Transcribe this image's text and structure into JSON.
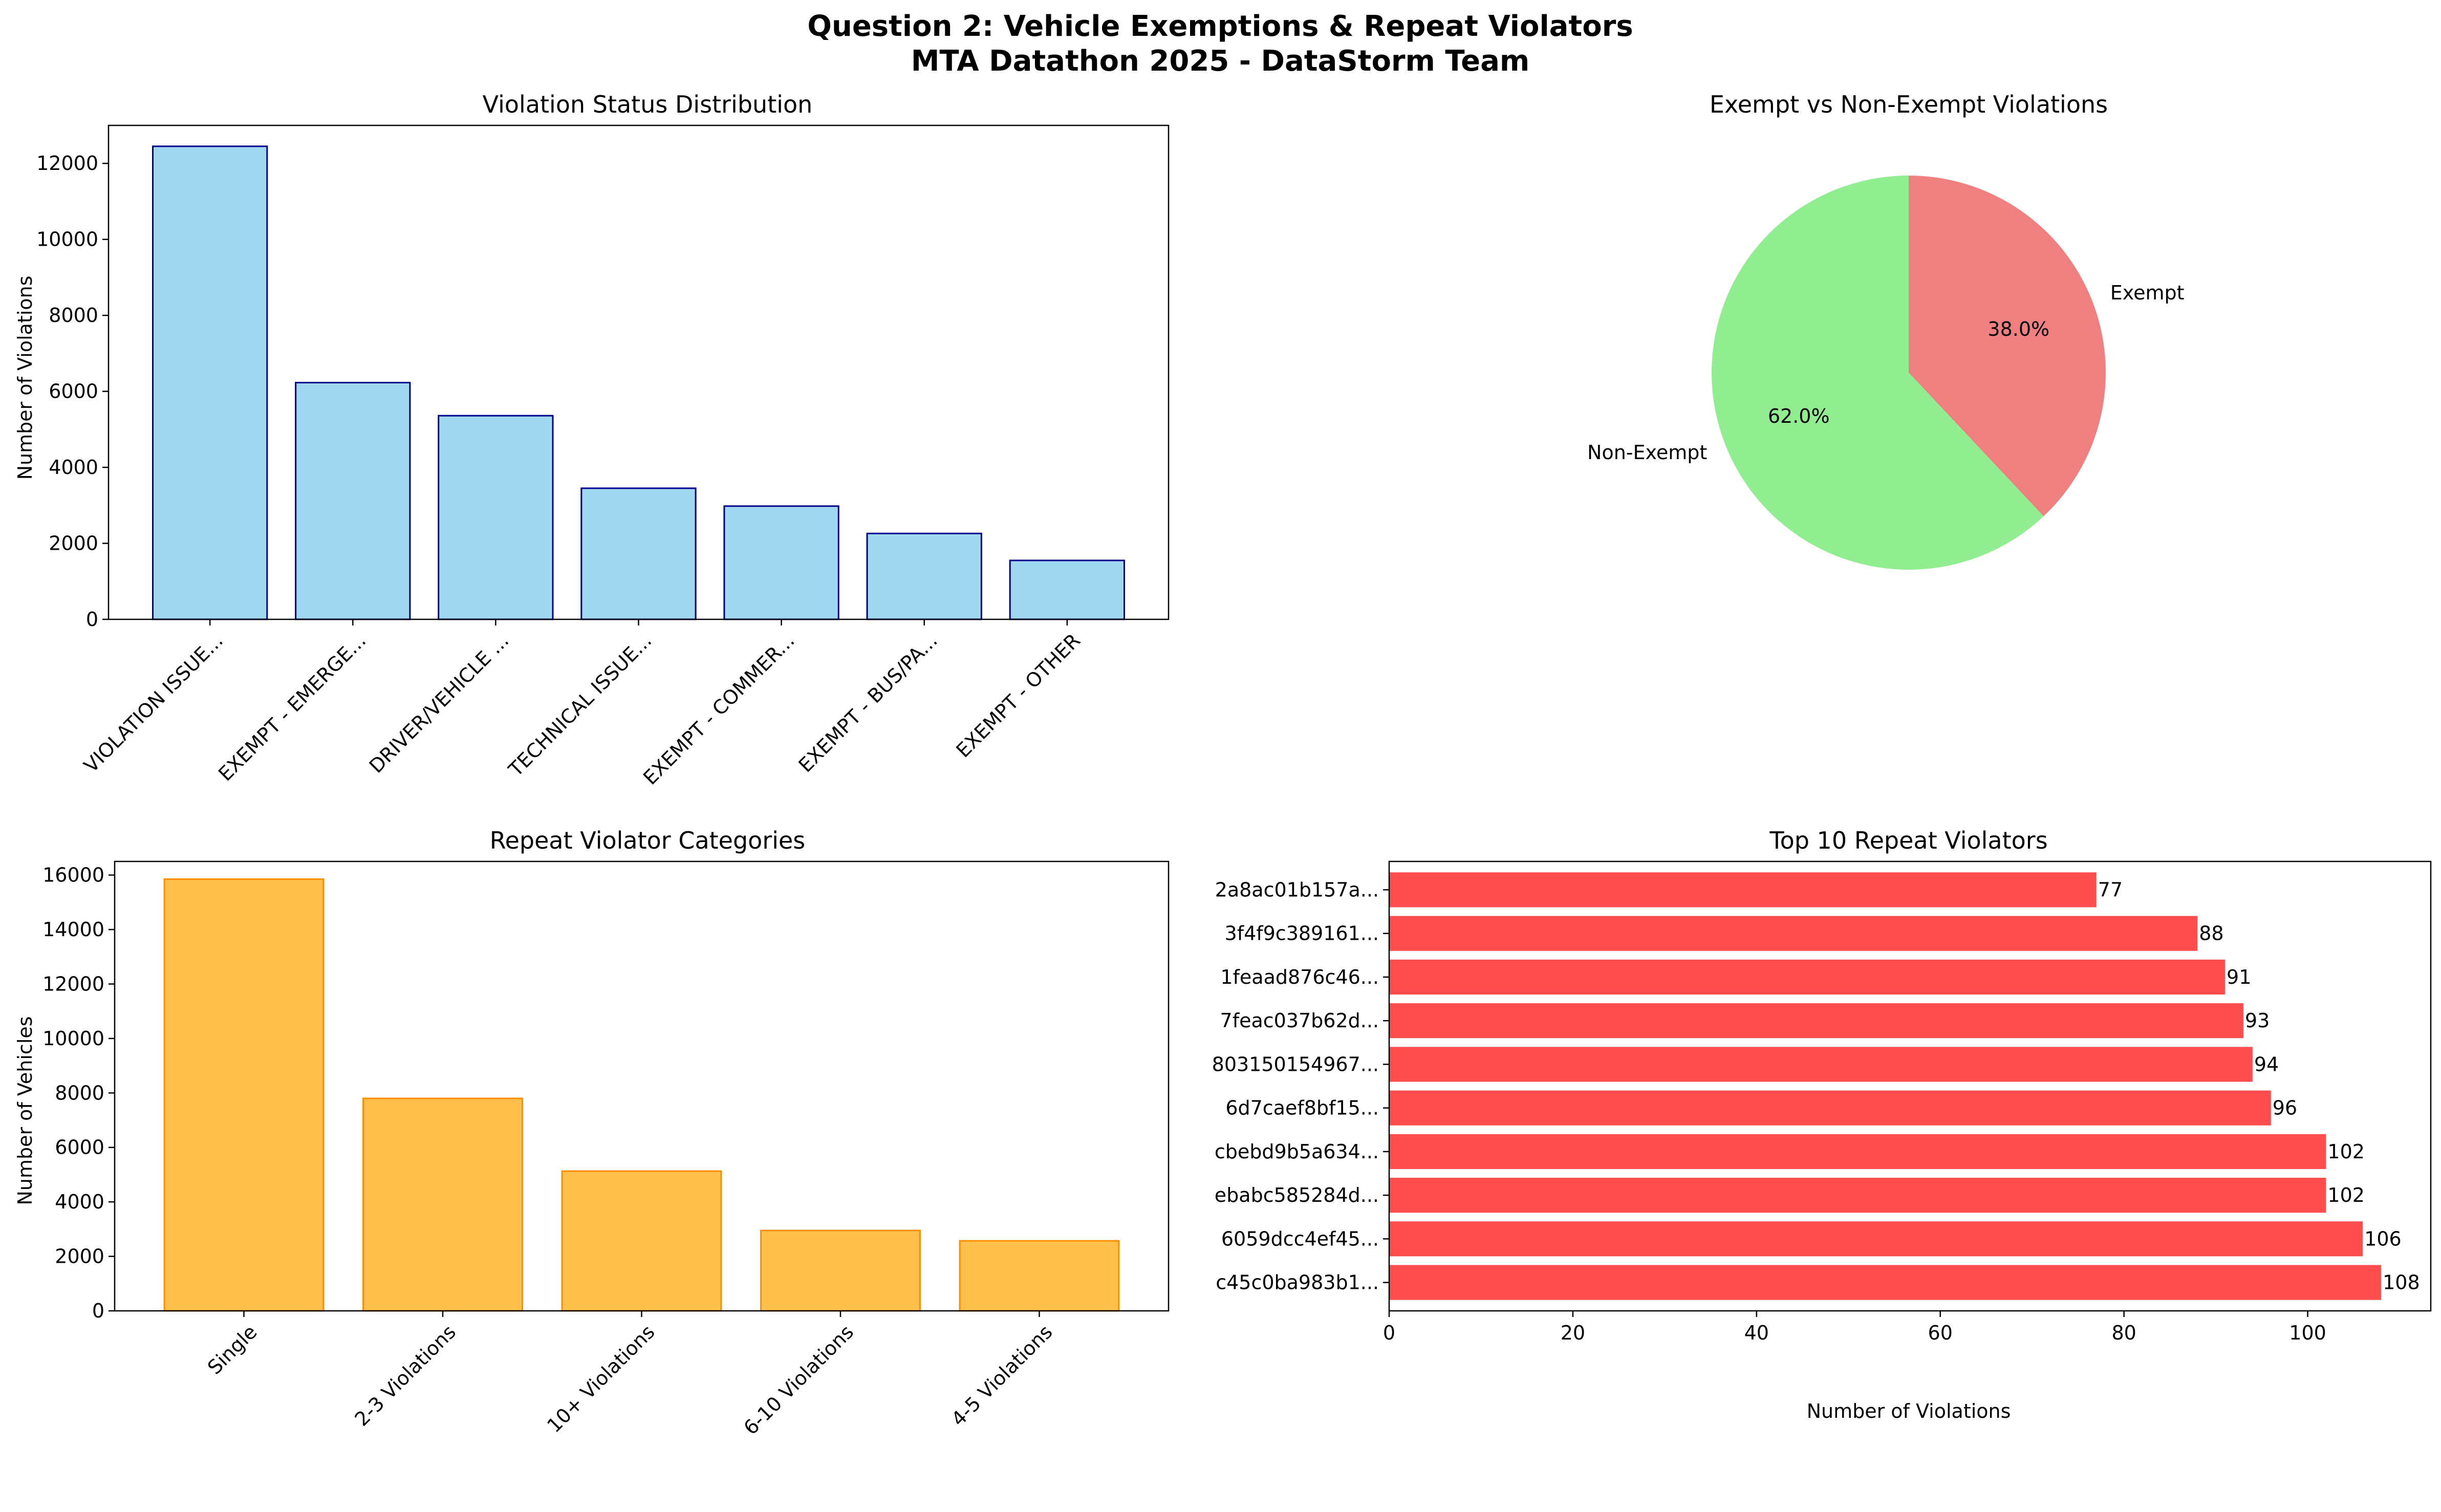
{
  "figure": {
    "title_line1": "Question 2: Vehicle Exemptions & Repeat Violators",
    "title_line2": "MTA Datathon 2025 - DataStorm Team"
  },
  "chart_data": [
    {
      "type": "bar",
      "title": "Violation Status Distribution",
      "xlabel": "",
      "ylabel": "Number of Violations",
      "categories": [
        "VIOLATION ISSUE...",
        "EXEMPT - EMERGE...",
        "DRIVER/VEHICLE ...",
        "TECHNICAL ISSUE...",
        "EXEMPT - COMMER...",
        "EXEMPT - BUS/PA...",
        "EXEMPT - OTHER"
      ],
      "values": [
        12450,
        6230,
        5360,
        3450,
        2980,
        2260,
        1550
      ],
      "ylim": [
        0,
        13000
      ],
      "yticks": [
        0,
        2000,
        4000,
        6000,
        8000,
        10000,
        12000
      ],
      "bar_color": "#87ceeb",
      "edge_color": "#00008b",
      "grid": false
    },
    {
      "type": "pie",
      "title": "Exempt vs Non-Exempt Violations",
      "labels": [
        "Exempt",
        "Non-Exempt"
      ],
      "values": [
        38.0,
        62.0
      ],
      "pct_labels": [
        "38.0%",
        "62.0%"
      ],
      "colors": [
        "#f08080",
        "#90ee90"
      ]
    },
    {
      "type": "bar",
      "title": "Repeat Violator Categories",
      "xlabel": "",
      "ylabel": "Number of Vehicles",
      "categories": [
        "Single",
        "2-3 Violations",
        "10+ Violations",
        "6-10 Violations",
        "4-5 Violations"
      ],
      "values": [
        15850,
        7800,
        5130,
        2950,
        2570
      ],
      "ylim": [
        0,
        16500
      ],
      "yticks": [
        0,
        2000,
        4000,
        6000,
        8000,
        10000,
        12000,
        14000,
        16000
      ],
      "bar_color": "#ffa500",
      "edge_color": "#ff8c00",
      "grid": false
    },
    {
      "type": "bar",
      "orientation": "horizontal",
      "title": "Top 10 Repeat Violators",
      "xlabel": "Number of Violations",
      "ylabel": "",
      "categories": [
        "c45c0ba983b1...",
        "6059dcc4ef45...",
        "ebabc585284d...",
        "cbebd9b5a634...",
        "6d7caef8bf15...",
        "803150154967...",
        "7feac037b62d...",
        "1feaad876c46...",
        "3f4f9c389161...",
        "2a8ac01b157a..."
      ],
      "values": [
        108,
        106,
        102,
        102,
        96,
        94,
        93,
        91,
        88,
        77
      ],
      "value_labels": [
        "108",
        "106",
        "102",
        "102",
        "96",
        "94",
        "93",
        "91",
        "88",
        "77"
      ],
      "xlim": [
        0,
        113.4
      ],
      "xticks": [
        0,
        20,
        40,
        60,
        80,
        100
      ],
      "bar_color": "#ff0000",
      "grid": false
    }
  ]
}
